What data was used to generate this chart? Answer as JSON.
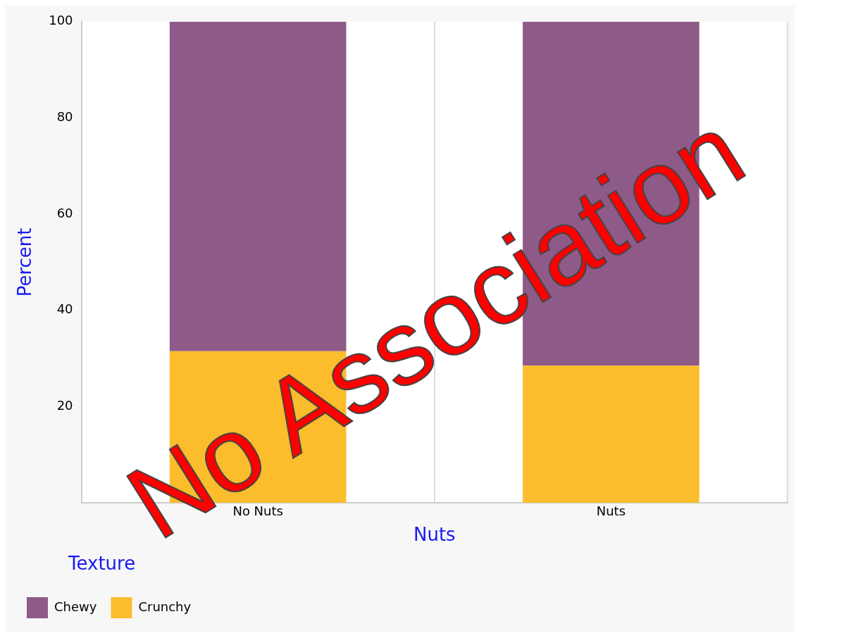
{
  "chart_data": {
    "type": "bar",
    "stacked": true,
    "xlabel": "Nuts",
    "ylabel": "Percent",
    "legend_title": "Texture",
    "legend": "bottom left",
    "categories": [
      "No Nuts",
      "Nuts"
    ],
    "series": [
      {
        "name": "Crunchy",
        "color": "#fbbd2c",
        "values": [
          31.5,
          28.5
        ]
      },
      {
        "name": "Chewy",
        "color": "#8e5a88",
        "values": [
          68.5,
          71.5
        ]
      }
    ],
    "ylim": [
      0,
      100
    ],
    "yticks": [
      20,
      40,
      60,
      80,
      100
    ],
    "grid": "x",
    "annotations": [
      "No Association"
    ]
  }
}
